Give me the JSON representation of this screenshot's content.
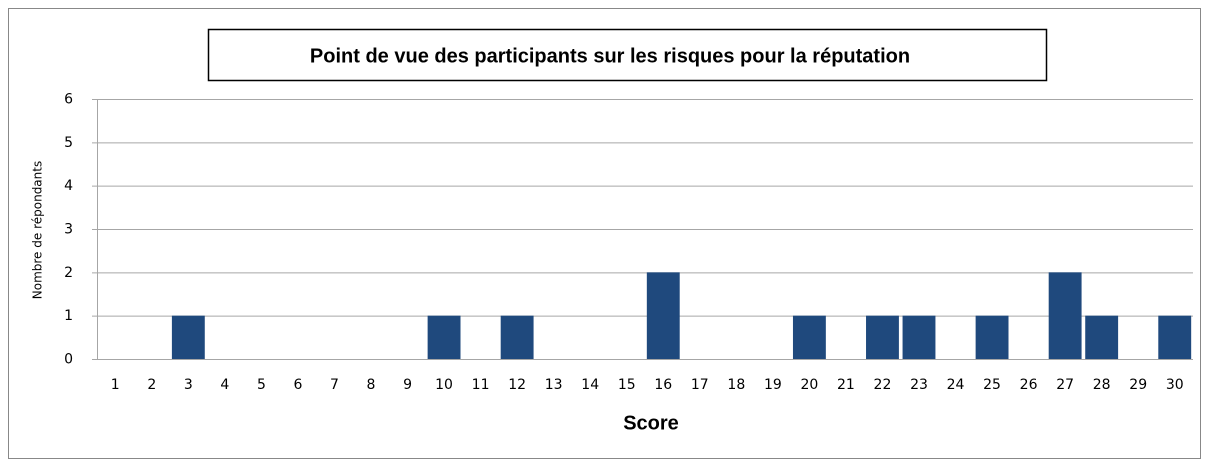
{
  "chart_data": {
    "type": "bar",
    "title": "Point de vue des participants sur les risques pour la réputation",
    "x_label": "Score",
    "y_label": "Nombre de répondants",
    "categories": [
      "1",
      "2",
      "3",
      "4",
      "5",
      "6",
      "7",
      "8",
      "9",
      "10",
      "11",
      "12",
      "13",
      "14",
      "15",
      "16",
      "17",
      "18",
      "19",
      "20",
      "21",
      "22",
      "23",
      "24",
      "25",
      "26",
      "27",
      "28",
      "29",
      "30"
    ],
    "values": [
      0,
      0,
      1,
      0,
      0,
      0,
      0,
      0,
      0,
      1,
      0,
      1,
      0,
      0,
      0,
      2,
      0,
      0,
      0,
      1,
      0,
      1,
      1,
      0,
      1,
      0,
      2,
      1,
      0,
      1
    ],
    "color": "#1f497d",
    "ylim": [
      0,
      6
    ],
    "yticks": [
      0,
      1,
      2,
      3,
      4,
      5,
      6
    ],
    "grid": true
  }
}
